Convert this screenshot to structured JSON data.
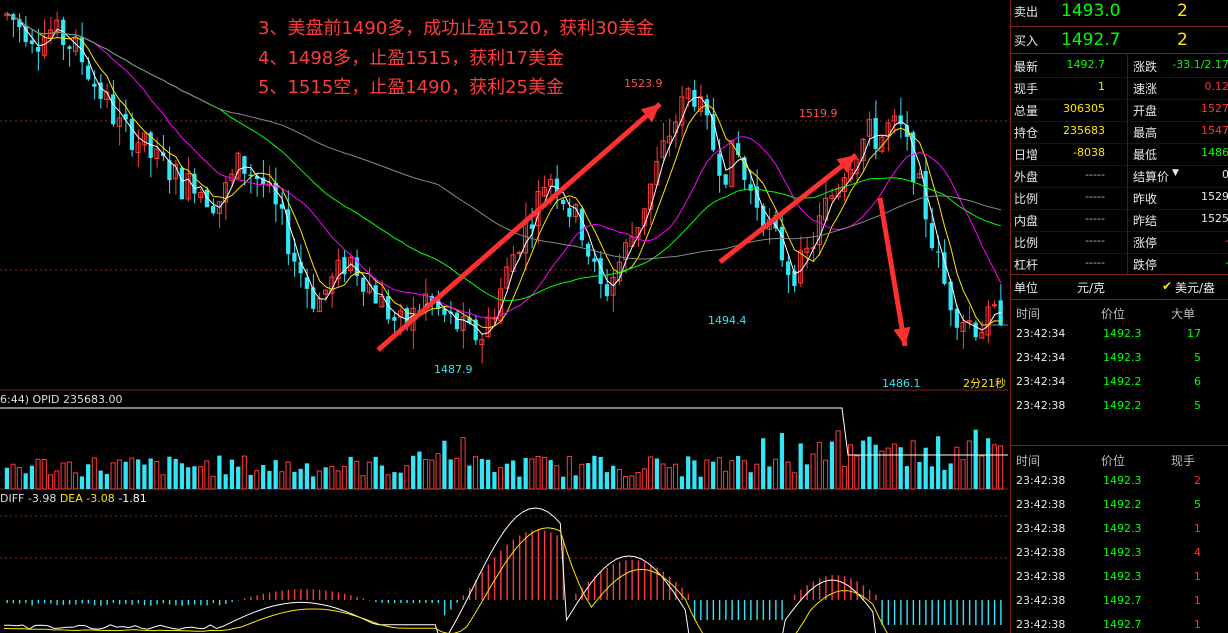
{
  "annotations": [
    "3、美盘前1490多，成功止盈1520，获利30美金",
    "4、1498多，止盈1515，获利17美金",
    "5、1515空，止盈1490，获利25美金"
  ],
  "chart_data": {
    "type": "candlestick",
    "price_labels": [
      "1523.9",
      "1519.9",
      "1494.4",
      "1487.9",
      "1486.1"
    ],
    "price_label_values": [
      1523.9,
      1519.9,
      1494.4,
      1487.9,
      1486.1
    ],
    "countdown": "2分21秒",
    "ylim": [
      1482,
      1532
    ],
    "close_series": [
      1530,
      1529,
      1528,
      1527,
      1528,
      1527,
      1526,
      1524,
      1521,
      1519,
      1516,
      1515,
      1514,
      1512,
      1511,
      1510,
      1508,
      1509,
      1507,
      1506,
      1508,
      1511,
      1510,
      1509,
      1506,
      1503,
      1499,
      1496,
      1493,
      1495,
      1497,
      1499,
      1497,
      1495,
      1493,
      1491,
      1490,
      1492,
      1494,
      1492,
      1491,
      1490,
      1489,
      1489,
      1492,
      1496,
      1500,
      1503,
      1506,
      1510,
      1508,
      1505,
      1503,
      1498,
      1494,
      1497,
      1500,
      1503,
      1507,
      1511,
      1515,
      1518,
      1521,
      1517,
      1513,
      1510,
      1513,
      1508,
      1506,
      1503,
      1500,
      1497,
      1498,
      1501,
      1505,
      1508,
      1511,
      1513,
      1515,
      1514,
      1516,
      1515,
      1511,
      1506,
      1500,
      1495,
      1492,
      1491,
      1490,
      1491,
      1492
    ],
    "opid_label": "OPID 235683.00",
    "opid_prefix": "6:44)",
    "macd": {
      "diff_label": "DIFF -3.98",
      "dea_label": "DEA -3.08",
      "macd_value": "-1.81"
    }
  },
  "panel": {
    "sell_label": "卖出",
    "sell_price": "1493.0",
    "sell_qty": "2",
    "buy_label": "买入",
    "buy_price": "1492.7",
    "buy_qty": "2",
    "stats_left": [
      {
        "label": "最新",
        "value": "1492.7",
        "color": "green"
      },
      {
        "label": "现手",
        "value": "1",
        "color": "yellow"
      },
      {
        "label": "总量",
        "value": "306305",
        "color": "yellow"
      },
      {
        "label": "持仓",
        "value": "235683",
        "color": "yellow"
      },
      {
        "label": "日增",
        "value": "-8038",
        "color": "yellow"
      },
      {
        "label": "外盘",
        "value": "-----",
        "color": "gray"
      },
      {
        "label": "比例",
        "value": "-----",
        "color": "gray"
      },
      {
        "label": "内盘",
        "value": "-----",
        "color": "gray"
      },
      {
        "label": "比例",
        "value": "-----",
        "color": "gray"
      },
      {
        "label": "杠杆",
        "value": "-----",
        "color": "gray"
      }
    ],
    "stats_right": [
      {
        "label": "涨跌",
        "value": "-33.1/2.17",
        "color": "green"
      },
      {
        "label": "速涨",
        "value": "0.12",
        "color": "red"
      },
      {
        "label": "开盘",
        "value": "1527",
        "color": "red"
      },
      {
        "label": "最高",
        "value": "1547",
        "color": "red"
      },
      {
        "label": "最低",
        "value": "1486",
        "color": "green"
      },
      {
        "label": "结算价",
        "value": "0",
        "color": "white"
      },
      {
        "label": "昨收",
        "value": "1529",
        "color": "white"
      },
      {
        "label": "昨结",
        "value": "1525",
        "color": "white"
      },
      {
        "label": "涨停",
        "value": "-",
        "color": "red"
      },
      {
        "label": "跌停",
        "value": "-",
        "color": "green"
      }
    ],
    "unit_label": "单位",
    "unit_value": "元/克",
    "unit_option": "美元/盎",
    "trades1_headers": [
      "时间",
      "价位",
      "大单"
    ],
    "trades1": [
      {
        "time": "23:42:34",
        "price": "1492.3",
        "qty": "17"
      },
      {
        "time": "23:42:34",
        "price": "1492.3",
        "qty": "5"
      },
      {
        "time": "23:42:34",
        "price": "1492.2",
        "qty": "6"
      },
      {
        "time": "23:42:38",
        "price": "1492.2",
        "qty": "5"
      }
    ],
    "trades2_headers": [
      "时间",
      "价位",
      "现手"
    ],
    "trades2": [
      {
        "time": "23:42:38",
        "price": "1492.3",
        "qty": "2",
        "qcolor": "red"
      },
      {
        "time": "23:42:38",
        "price": "1492.2",
        "qty": "5",
        "qcolor": "green"
      },
      {
        "time": "23:42:38",
        "price": "1492.3",
        "qty": "1",
        "qcolor": "red"
      },
      {
        "time": "23:42:38",
        "price": "1492.3",
        "qty": "4",
        "qcolor": "red"
      },
      {
        "time": "23:42:38",
        "price": "1492.3",
        "qty": "1",
        "qcolor": "red"
      },
      {
        "time": "23:42:38",
        "price": "1492.7",
        "qty": "1",
        "qcolor": "red"
      },
      {
        "time": "23:42:38",
        "price": "1492.7",
        "qty": "1",
        "qcolor": "red"
      }
    ]
  }
}
